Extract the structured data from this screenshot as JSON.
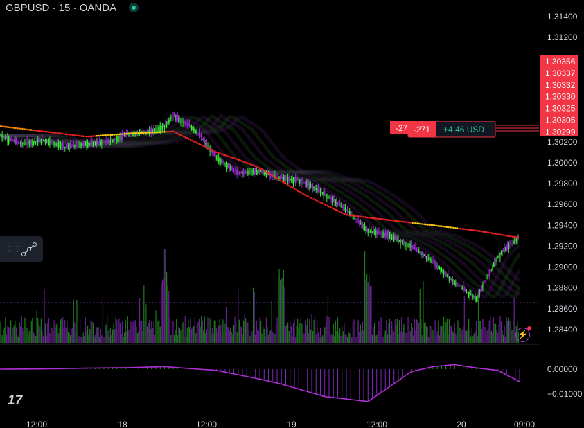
{
  "header": {
    "symbol": "GBPUSD",
    "interval": "15",
    "broker": "OANDA",
    "separator": " · "
  },
  "position": {
    "qty_left": "-27",
    "qty": "-271",
    "pnl": "+4.46 USD"
  },
  "price_tags": [
    "1.30356",
    "1.30337",
    "1.30332",
    "1.30330",
    "1.30325",
    "1.30305",
    "1.30299"
  ],
  "colors": {
    "bull": "#3be83b",
    "bear": "#9c27d6",
    "ma": "#e8231f",
    "tag": "#f23645",
    "ribbon": "#1e5a1e",
    "bg": "#000000"
  },
  "icons": {
    "drawing_tool": "line-tool-icon",
    "grip": "grip-dots-icon",
    "alert": "lightning-icon",
    "logo": "tradingview-logo"
  },
  "chart_data": [
    {
      "type": "candlestick",
      "title": "GBPUSD · 15 · OANDA",
      "y_ticks": [
        "1.31400",
        "1.31200",
        "1.30200",
        "1.30000",
        "1.29800",
        "1.29600",
        "1.29400",
        "1.29200",
        "1.29000",
        "1.28800",
        "1.28600",
        "1.28400"
      ],
      "x_ticks": [
        "12:00",
        "18",
        "12:00",
        "19",
        "12:00",
        "20",
        "09:00"
      ],
      "ylim": [
        1.2833,
        1.3151
      ],
      "series": [
        {
          "name": "Close path",
          "x": [
            0,
            5,
            10,
            15,
            20,
            25,
            30,
            35,
            38,
            40,
            45,
            50,
            55,
            60,
            65,
            70,
            75,
            80,
            85,
            90,
            95,
            100,
            105,
            110,
            115,
            120
          ],
          "values": [
            1.3026,
            1.3018,
            1.3022,
            1.3015,
            1.3018,
            1.302,
            1.3028,
            1.303,
            1.3035,
            1.3045,
            1.3032,
            1.3005,
            1.299,
            1.2992,
            1.2985,
            1.2982,
            1.297,
            1.2955,
            1.2935,
            1.293,
            1.292,
            1.2905,
            1.2885,
            1.287,
            1.291,
            1.293
          ]
        },
        {
          "name": "Moving average",
          "x": [
            0,
            10,
            20,
            30,
            40,
            50,
            55,
            60,
            70,
            80,
            90,
            100,
            110,
            120
          ],
          "values": [
            1.3035,
            1.303,
            1.3025,
            1.3028,
            1.303,
            1.301,
            1.3003,
            1.2995,
            1.297,
            1.295,
            1.2945,
            1.294,
            1.2935,
            1.2928
          ]
        }
      ]
    },
    {
      "type": "bar",
      "title": "Volume",
      "series": [
        {
          "name": "Volume"
        }
      ]
    },
    {
      "type": "line",
      "title": "Oscillator",
      "y_ticks": [
        "0.00000",
        "−0.01000"
      ],
      "x": [
        0,
        10,
        20,
        30,
        38,
        45,
        50,
        60,
        65,
        75,
        85,
        90,
        95,
        100,
        105,
        110,
        115,
        120
      ],
      "values": [
        0.0,
        0.0001,
        0.0004,
        0.0006,
        0.001,
        0.0001,
        -0.0005,
        -0.004,
        -0.006,
        -0.011,
        -0.013,
        -0.007,
        -0.001,
        0.001,
        0.0018,
        0.0005,
        -0.0005,
        -0.005
      ]
    }
  ]
}
